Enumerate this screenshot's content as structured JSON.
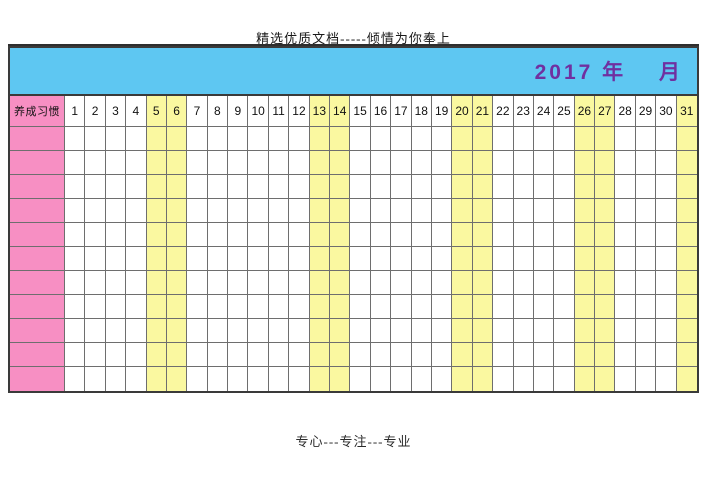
{
  "page_header": {
    "text": "精选优质文档-----倾情为你奉上"
  },
  "banner": {
    "title": "2017 年　 月",
    "year": "2017",
    "background": "#5ec7f2",
    "title_color": "#7030a0"
  },
  "table": {
    "corner_label": "养成习惯",
    "days": [
      1,
      2,
      3,
      4,
      5,
      6,
      7,
      8,
      9,
      10,
      11,
      12,
      13,
      14,
      15,
      16,
      17,
      18,
      19,
      20,
      21,
      22,
      23,
      24,
      25,
      26,
      27,
      28,
      29,
      30,
      31
    ],
    "highlighted_days": [
      5,
      6,
      13,
      14,
      20,
      21,
      26,
      27,
      31
    ],
    "body_rows": 11,
    "colors": {
      "corner_bg": "#f78fc3",
      "highlight_bg": "#faf8a0",
      "cell_bg": "#ffffff",
      "grid_line": "#6e6e6e",
      "outer_border": "#3a3a3a"
    }
  },
  "page_footer": {
    "text": "专心---专注---专业"
  }
}
